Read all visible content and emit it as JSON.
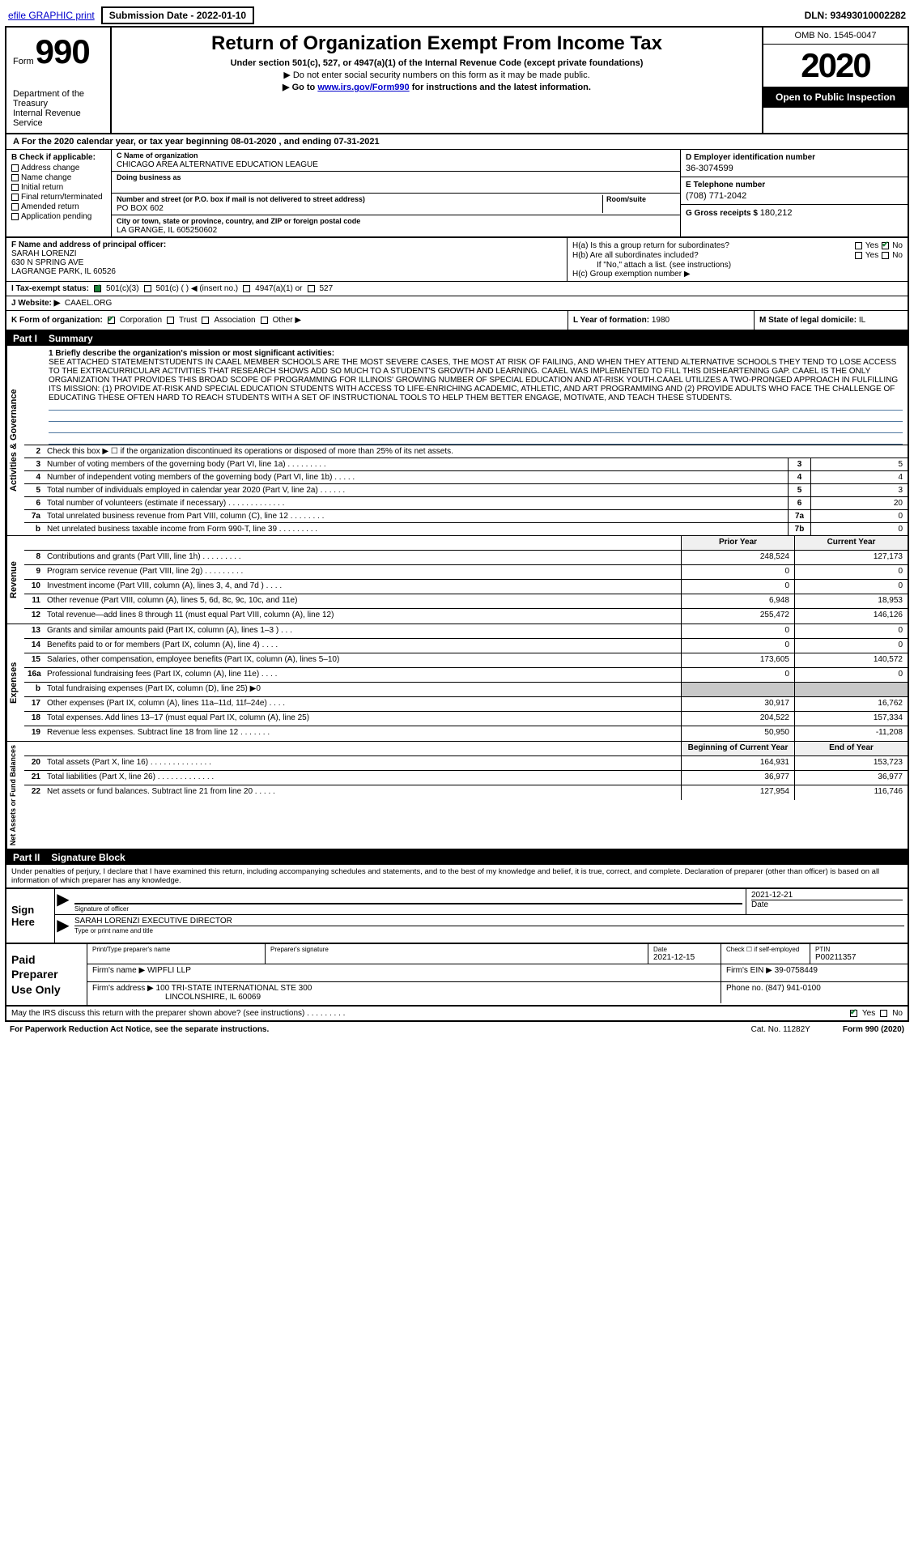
{
  "topbar": {
    "efile": "efile GRAPHIC print",
    "submit_label": "Submission Date - 2022-01-10",
    "dln": "DLN: 93493010002282"
  },
  "header": {
    "form_small": "Form",
    "form_big": "990",
    "dept1": "Department of the Treasury",
    "dept2": "Internal Revenue Service",
    "title": "Return of Organization Exempt From Income Tax",
    "sub": "Under section 501(c), 527, or 4947(a)(1) of the Internal Revenue Code (except private foundations)",
    "sub2": "▶ Do not enter social security numbers on this form as it may be made public.",
    "sub3a": "▶ Go to ",
    "sub3link": "www.irs.gov/Form990",
    "sub3b": " for instructions and the latest information.",
    "omb": "OMB No. 1545-0047",
    "year": "2020",
    "open": "Open to Public Inspection"
  },
  "period": "A For the 2020 calendar year, or tax year beginning 08-01-2020    , and ending 07-31-2021",
  "B": {
    "hdr": "B Check if applicable:",
    "items": [
      "Address change",
      "Name change",
      "Initial return",
      "Final return/terminated",
      "Amended return",
      "Application pending"
    ]
  },
  "C": {
    "name_lbl": "C Name of organization",
    "name": "CHICAGO AREA ALTERNATIVE EDUCATION LEAGUE",
    "dba_lbl": "Doing business as",
    "dba": "",
    "addr_lbl": "Number and street (or P.O. box if mail is not delivered to street address)",
    "addr": "PO BOX 602",
    "suite_lbl": "Room/suite",
    "city_lbl": "City or town, state or province, country, and ZIP or foreign postal code",
    "city": "LA GRANGE, IL  605250602"
  },
  "D": {
    "ein_lbl": "D Employer identification number",
    "ein": "36-3074599",
    "tel_lbl": "E Telephone number",
    "tel": "(708) 771-2042",
    "gross_lbl": "G Gross receipts $",
    "gross": "180,212"
  },
  "F": {
    "lbl": "F  Name and address of principal officer:",
    "name": "SARAH LORENZI",
    "addr1": "630 N SPRING AVE",
    "addr2": "LAGRANGE PARK, IL  60526"
  },
  "H": {
    "a": "H(a)  Is this a group return for subordinates?",
    "b": "H(b)  Are all subordinates included?",
    "note": "If \"No,\" attach a list. (see instructions)",
    "c": "H(c)  Group exemption number ▶"
  },
  "I": {
    "lbl": "I   Tax-exempt status:",
    "o1": "501(c)(3)",
    "o2": "501(c) (   ) ◀ (insert no.)",
    "o3": "4947(a)(1) or",
    "o4": "527"
  },
  "J": {
    "lbl": "J   Website: ▶",
    "val": "CAAEL.ORG"
  },
  "K": {
    "lbl": "K Form of organization:",
    "o1": "Corporation",
    "o2": "Trust",
    "o3": "Association",
    "o4": "Other ▶"
  },
  "L": {
    "lbl": "L Year of formation:",
    "val": "1980"
  },
  "M": {
    "lbl": "M State of legal domicile:",
    "val": "IL"
  },
  "part1": {
    "title": "Part I",
    "name": "Summary",
    "tab": "Activities & Governance",
    "m_lbl": "1   Briefly describe the organization's mission or most significant activities:",
    "mission": "SEE ATTACHED STATEMENTSTUDENTS IN CAAEL MEMBER SCHOOLS ARE THE MOST SEVERE CASES, THE MOST AT RISK OF FAILING, AND WHEN THEY ATTEND ALTERNATIVE SCHOOLS THEY TEND TO LOSE ACCESS TO THE EXTRACURRICULAR ACTIVITIES THAT RESEARCH SHOWS ADD SO MUCH TO A STUDENT'S GROWTH AND LEARNING. CAAEL WAS IMPLEMENTED TO FILL THIS DISHEARTENING GAP. CAAEL IS THE ONLY ORGANIZATION THAT PROVIDES THIS BROAD SCOPE OF PROGRAMMING FOR ILLINOIS' GROWING NUMBER OF SPECIAL EDUCATION AND AT-RISK YOUTH.CAAEL UTILIZES A TWO-PRONGED APPROACH IN FULFILLING ITS MISSION: (1) PROVIDE AT-RISK AND SPECIAL EDUCATION STUDENTS WITH ACCESS TO LIFE-ENRICHING ACADEMIC, ATHLETIC, AND ART PROGRAMMING AND (2) PROVIDE ADULTS WHO FACE THE CHALLENGE OF EDUCATING THESE OFTEN HARD TO REACH STUDENTS WITH A SET OF INSTRUCTIONAL TOOLS TO HELP THEM BETTER ENGAGE, MOTIVATE, AND TEACH THESE STUDENTS.",
    "l2": "Check this box ▶ ☐ if the organization discontinued its operations or disposed of more than 25% of its net assets.",
    "rows": [
      {
        "n": "3",
        "t": "Number of voting members of the governing body (Part VI, line 1a)   .    .    .    .    .    .    .    .    .",
        "b": "3",
        "v": "5"
      },
      {
        "n": "4",
        "t": "Number of independent voting members of the governing body (Part VI, line 1b)   .    .    .    .    .",
        "b": "4",
        "v": "4"
      },
      {
        "n": "5",
        "t": "Total number of individuals employed in calendar year 2020 (Part V, line 2a)   .    .    .    .    .    .",
        "b": "5",
        "v": "3"
      },
      {
        "n": "6",
        "t": "Total number of volunteers (estimate if necessary)   .    .    .    .    .    .    .    .    .    .    .    .    .",
        "b": "6",
        "v": "20"
      },
      {
        "n": "7a",
        "t": "Total unrelated business revenue from Part VIII, column (C), line 12   .    .    .    .    .    .    .    .",
        "b": "7a",
        "v": "0"
      },
      {
        "n": "b",
        "t": "Net unrelated business taxable income from Form 990-T, line 39   .    .    .    .    .    .    .    .    .",
        "b": "7b",
        "v": "0"
      }
    ]
  },
  "pycy": {
    "py": "Prior Year",
    "cy": "Current Year",
    "boy": "Beginning of Current Year",
    "eoy": "End of Year"
  },
  "revenue": {
    "tab": "Revenue",
    "rows": [
      {
        "n": "8",
        "t": "Contributions and grants (Part VIII, line 1h)   .    .    .    .    .    .    .    .    .",
        "py": "248,524",
        "cy": "127,173"
      },
      {
        "n": "9",
        "t": "Program service revenue (Part VIII, line 2g)   .    .    .    .    .    .    .    .    .",
        "py": "0",
        "cy": "0"
      },
      {
        "n": "10",
        "t": "Investment income (Part VIII, column (A), lines 3, 4, and 7d )   .    .    .    .",
        "py": "0",
        "cy": "0"
      },
      {
        "n": "11",
        "t": "Other revenue (Part VIII, column (A), lines 5, 6d, 8c, 9c, 10c, and 11e)",
        "py": "6,948",
        "cy": "18,953"
      },
      {
        "n": "12",
        "t": "Total revenue—add lines 8 through 11 (must equal Part VIII, column (A), line 12)",
        "py": "255,472",
        "cy": "146,126"
      }
    ]
  },
  "expenses": {
    "tab": "Expenses",
    "rows": [
      {
        "n": "13",
        "t": "Grants and similar amounts paid (Part IX, column (A), lines 1–3 )   .    .    .",
        "py": "0",
        "cy": "0"
      },
      {
        "n": "14",
        "t": "Benefits paid to or for members (Part IX, column (A), line 4)   .    .    .    .",
        "py": "0",
        "cy": "0"
      },
      {
        "n": "15",
        "t": "Salaries, other compensation, employee benefits (Part IX, column (A), lines 5–10)",
        "py": "173,605",
        "cy": "140,572"
      },
      {
        "n": "16a",
        "t": "Professional fundraising fees (Part IX, column (A), line 11e)   .    .    .    .",
        "py": "0",
        "cy": "0"
      },
      {
        "n": "b",
        "t": "Total fundraising expenses (Part IX, column (D), line 25) ▶0",
        "py": "",
        "cy": "",
        "gray": true
      },
      {
        "n": "17",
        "t": "Other expenses (Part IX, column (A), lines 11a–11d, 11f–24e)   .    .    .    .",
        "py": "30,917",
        "cy": "16,762"
      },
      {
        "n": "18",
        "t": "Total expenses. Add lines 13–17 (must equal Part IX, column (A), line 25)",
        "py": "204,522",
        "cy": "157,334"
      },
      {
        "n": "19",
        "t": "Revenue less expenses. Subtract line 18 from line 12   .    .    .    .    .    .    .",
        "py": "50,950",
        "cy": "-11,208"
      }
    ]
  },
  "net": {
    "tab": "Net Assets or Fund Balances",
    "rows": [
      {
        "n": "20",
        "t": "Total assets (Part X, line 16)   .    .    .    .    .    .    .    .    .    .    .    .    .    .",
        "py": "164,931",
        "cy": "153,723"
      },
      {
        "n": "21",
        "t": "Total liabilities (Part X, line 26)   .    .    .    .    .    .    .    .    .    .    .    .    .",
        "py": "36,977",
        "cy": "36,977"
      },
      {
        "n": "22",
        "t": "Net assets or fund balances. Subtract line 21 from line 20   .    .    .    .    .",
        "py": "127,954",
        "cy": "116,746"
      }
    ]
  },
  "part2": {
    "title": "Part II",
    "name": "Signature Block"
  },
  "penalties": "Under penalties of perjury, I declare that I have examined this return, including accompanying schedules and statements, and to the best of my knowledge and belief, it is true, correct, and complete. Declaration of preparer (other than officer) is based on all information of which preparer has any knowledge.",
  "sign": {
    "label": "Sign Here",
    "sig_lbl": "Signature of officer",
    "date_lbl": "Date",
    "date": "2021-12-21",
    "name": "SARAH LORENZI  EXECUTIVE DIRECTOR",
    "name_lbl": "Type or print name and title"
  },
  "paid": {
    "label": "Paid Preparer Use Only",
    "h1": "Print/Type preparer's name",
    "h2": "Preparer's signature",
    "h3": "Date",
    "h3v": "2021-12-15",
    "h4": "Check ☐ if self-employed",
    "h5": "PTIN",
    "h5v": "P00211357",
    "firm_lbl": "Firm's name     ▶",
    "firm": "WIPFLI LLP",
    "ein_lbl": "Firm's EIN ▶",
    "ein": "39-0758449",
    "addr_lbl": "Firm's address ▶",
    "addr1": "100 TRI-STATE INTERNATIONAL STE 300",
    "addr2": "LINCOLNSHIRE, IL  60069",
    "phone_lbl": "Phone no.",
    "phone": "(847) 941-0100"
  },
  "discuss": "May the IRS discuss this return with the preparer shown above? (see instructions)   .    .    .    .    .    .    .    .    .",
  "bottom": {
    "pra": "For Paperwork Reduction Act Notice, see the separate instructions.",
    "cat": "Cat. No. 11282Y",
    "form": "Form 990 (2020)"
  },
  "yes": "Yes",
  "no": "No"
}
